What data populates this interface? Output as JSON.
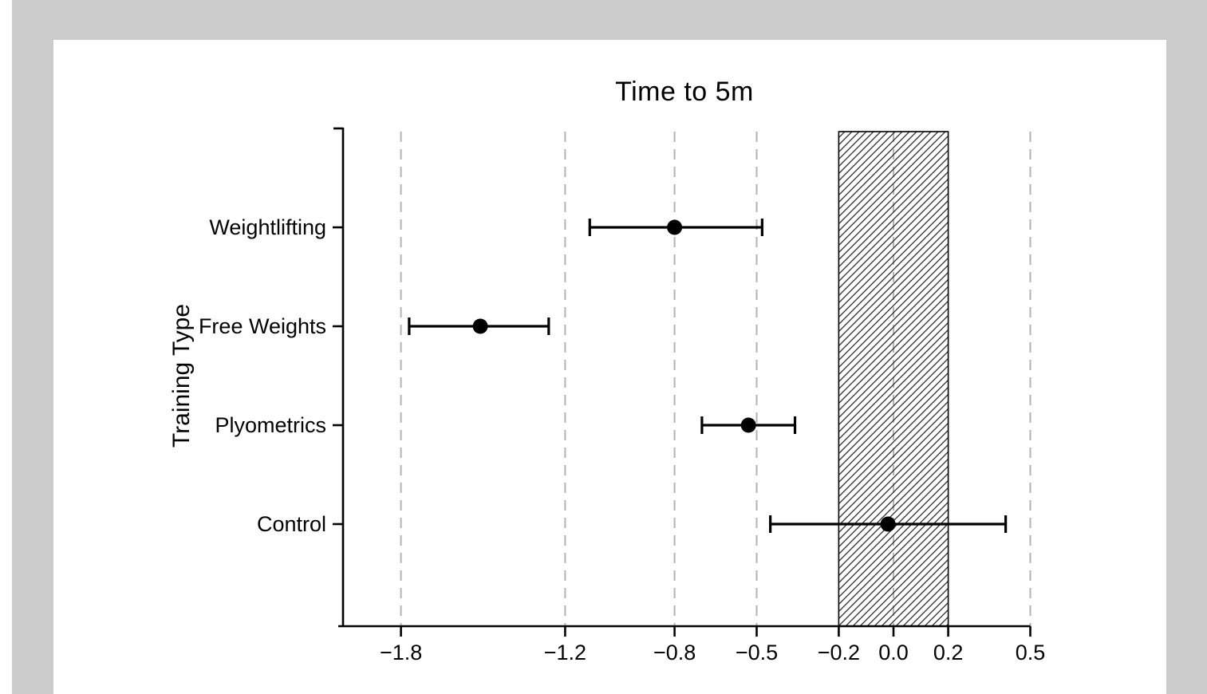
{
  "figure": {
    "title": "Time to 5m",
    "background_color": "#cbcbcb",
    "panel_color": "#ffffff"
  },
  "chart_data": {
    "type": "scatter",
    "subtype": "forest-plot-horizontal",
    "title": "Time to 5m",
    "xlabel": "",
    "ylabel": "Training Type",
    "categories": [
      "Weightlifting",
      "Free Weights",
      "Plyometrics",
      "Control"
    ],
    "series": [
      {
        "name": "Weightlifting",
        "mean": -0.8,
        "ci_low": -1.11,
        "ci_high": -0.48
      },
      {
        "name": "Free Weights",
        "mean": -1.51,
        "ci_low": -1.77,
        "ci_high": -1.26
      },
      {
        "name": "Plyometrics",
        "mean": -0.53,
        "ci_low": -0.7,
        "ci_high": -0.36
      },
      {
        "name": "Control",
        "mean": -0.02,
        "ci_low": -0.45,
        "ci_high": 0.41
      }
    ],
    "x_ticks": [
      -1.8,
      -1.2,
      -0.8,
      -0.5,
      -0.2,
      0.0,
      0.2,
      0.5
    ],
    "x_tick_labels": [
      "−1.8",
      "−1.2",
      "−0.8",
      "−0.5",
      "−0.2",
      "0.0",
      "0.2",
      "0.5"
    ],
    "xlim": [
      -2.03,
      0.5
    ],
    "gridline_values": [
      -1.8,
      -1.2,
      -0.8,
      -0.5,
      0.0,
      0.5
    ],
    "grid_style": "dashed-vertical",
    "equivalence_band": {
      "from": -0.2,
      "to": 0.2,
      "style": "diagonal-hatch"
    },
    "legend": "none",
    "colors": {
      "point": "#000000",
      "error_bar": "#000000",
      "gridline": "#b3b3b3",
      "band_border": "#000000",
      "band_hatch": "#2a2a2a",
      "axis": "#000000"
    }
  }
}
